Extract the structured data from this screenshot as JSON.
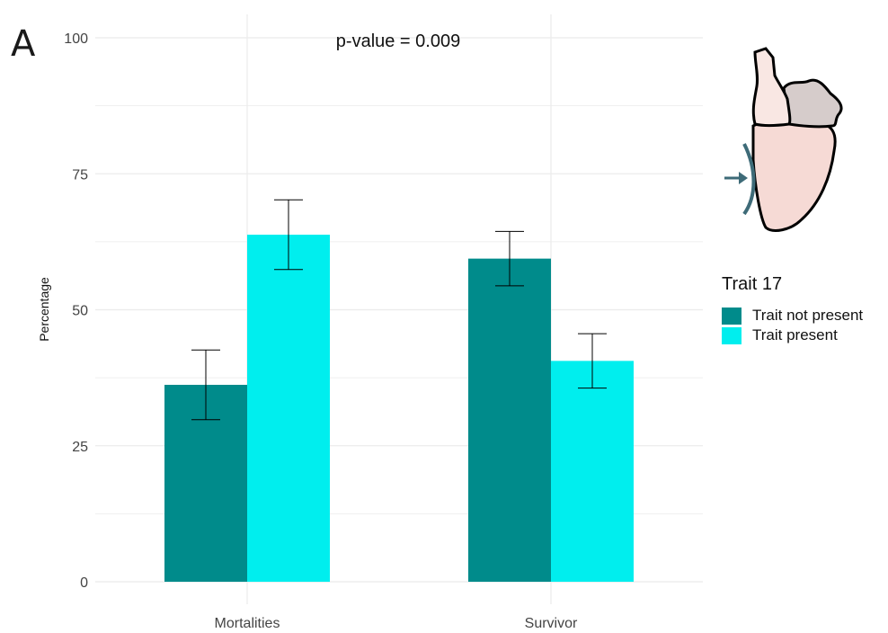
{
  "panel_label": "A",
  "legend": {
    "title": "Trait 17",
    "items": [
      {
        "label": "Trait not present",
        "color": "#008B8B"
      },
      {
        "label": "Trait present",
        "color": "#00EEEE"
      }
    ]
  },
  "chart_data": {
    "type": "bar",
    "annotation": "p-value = 0.009",
    "ylabel": "Percentage",
    "xlabel": "",
    "ylim": [
      0,
      100
    ],
    "yticks": [
      0,
      25,
      50,
      75,
      100
    ],
    "grid": true,
    "legend_position": "right",
    "categories": [
      "Mortalities",
      "Survivor"
    ],
    "series": [
      {
        "name": "Trait not present",
        "color": "#008B8B",
        "values": [
          36.2,
          59.4
        ],
        "error_low": [
          29.8,
          54.4
        ],
        "error_high": [
          42.6,
          64.4
        ]
      },
      {
        "name": "Trait present",
        "color": "#00EEEE",
        "values": [
          63.8,
          40.6
        ],
        "error_low": [
          57.4,
          35.6
        ],
        "error_high": [
          70.2,
          45.6
        ]
      }
    ]
  }
}
